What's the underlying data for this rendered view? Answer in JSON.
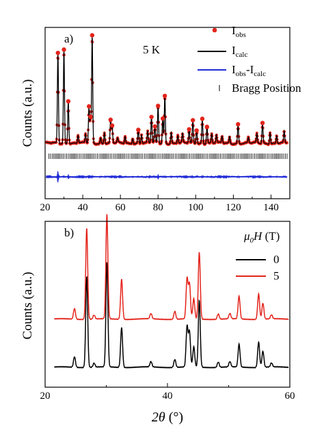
{
  "chart_data": [
    {
      "type": "line",
      "panel_label": "a)",
      "annotation": "5 K",
      "xlabel": "",
      "ylabel": "Counts (a.u.)",
      "xlim": [
        20,
        150
      ],
      "xticks": [
        "20",
        "40",
        "60",
        "80",
        "100",
        "120",
        "140"
      ],
      "legend": {
        "placement": "top-right",
        "obs_main": "I",
        "obs_sub": "obs",
        "calc_main": "I",
        "calc_sub": "calc",
        "diff_main1": "I",
        "diff_sub1": "obs",
        "diff_mid": "-I",
        "diff_sub2": "calc",
        "bragg": "Bragg Position"
      },
      "colors": {
        "obs": "#e3241b",
        "calc": "#000000",
        "diff": "#1f2ad6",
        "bragg": "#000000"
      },
      "peaks": [
        [
          26.8,
          0.8
        ],
        [
          30.0,
          0.83
        ],
        [
          32.3,
          0.38
        ],
        [
          37.5,
          0.07
        ],
        [
          41.5,
          0.08
        ],
        [
          43.3,
          0.32
        ],
        [
          44.1,
          0.22
        ],
        [
          45.0,
          0.95
        ],
        [
          49.5,
          0.05
        ],
        [
          51.5,
          0.1
        ],
        [
          54.8,
          0.2
        ],
        [
          55.6,
          0.15
        ],
        [
          58.5,
          0.04
        ],
        [
          62.5,
          0.06
        ],
        [
          66.5,
          0.05
        ],
        [
          69.5,
          0.12
        ],
        [
          71.2,
          0.08
        ],
        [
          74.5,
          0.1
        ],
        [
          76.5,
          0.23
        ],
        [
          78.3,
          0.14
        ],
        [
          80.0,
          0.33
        ],
        [
          82.5,
          0.22
        ],
        [
          83.6,
          0.42
        ],
        [
          87.0,
          0.1
        ],
        [
          90.5,
          0.07
        ],
        [
          93.0,
          0.08
        ],
        [
          96.5,
          0.12
        ],
        [
          98.5,
          0.2
        ],
        [
          100.5,
          0.12
        ],
        [
          103.5,
          0.22
        ],
        [
          106.0,
          0.15
        ],
        [
          108.5,
          0.08
        ],
        [
          111.0,
          0.07
        ],
        [
          114.0,
          0.06
        ],
        [
          118.0,
          0.06
        ],
        [
          122.5,
          0.17
        ],
        [
          128.0,
          0.05
        ],
        [
          132.5,
          0.08
        ],
        [
          135.5,
          0.18
        ],
        [
          139.5,
          0.1
        ],
        [
          143.0,
          0.07
        ],
        [
          147.0,
          0.1
        ]
      ]
    },
    {
      "type": "line",
      "panel_label": "b)",
      "xlabel_var": "2θ",
      "xlabel_unit": " (°)",
      "ylabel": "Counts (a.u.)",
      "xlim": [
        20,
        60
      ],
      "xticks": [
        "20",
        "40",
        "60"
      ],
      "legend": {
        "placement": "top-right",
        "title_var": "μ",
        "title_sub": "0",
        "title_var2": "H",
        "title_unit": " (T)"
      },
      "peaks": [
        [
          24.8,
          0.08
        ],
        [
          26.8,
          0.68
        ],
        [
          28.0,
          0.03
        ],
        [
          30.1,
          0.78
        ],
        [
          32.5,
          0.3
        ],
        [
          37.3,
          0.04
        ],
        [
          41.2,
          0.06
        ],
        [
          43.2,
          0.3
        ],
        [
          43.6,
          0.26
        ],
        [
          44.3,
          0.15
        ],
        [
          45.2,
          0.5
        ],
        [
          48.3,
          0.04
        ],
        [
          50.2,
          0.04
        ],
        [
          51.7,
          0.17
        ],
        [
          54.9,
          0.19
        ],
        [
          55.6,
          0.12
        ],
        [
          57.0,
          0.03
        ]
      ],
      "series": [
        {
          "name": "0",
          "color": "#000000",
          "offset": 0.0
        },
        {
          "name": "5",
          "color": "#e3241b",
          "offset": 0.36
        }
      ]
    }
  ]
}
